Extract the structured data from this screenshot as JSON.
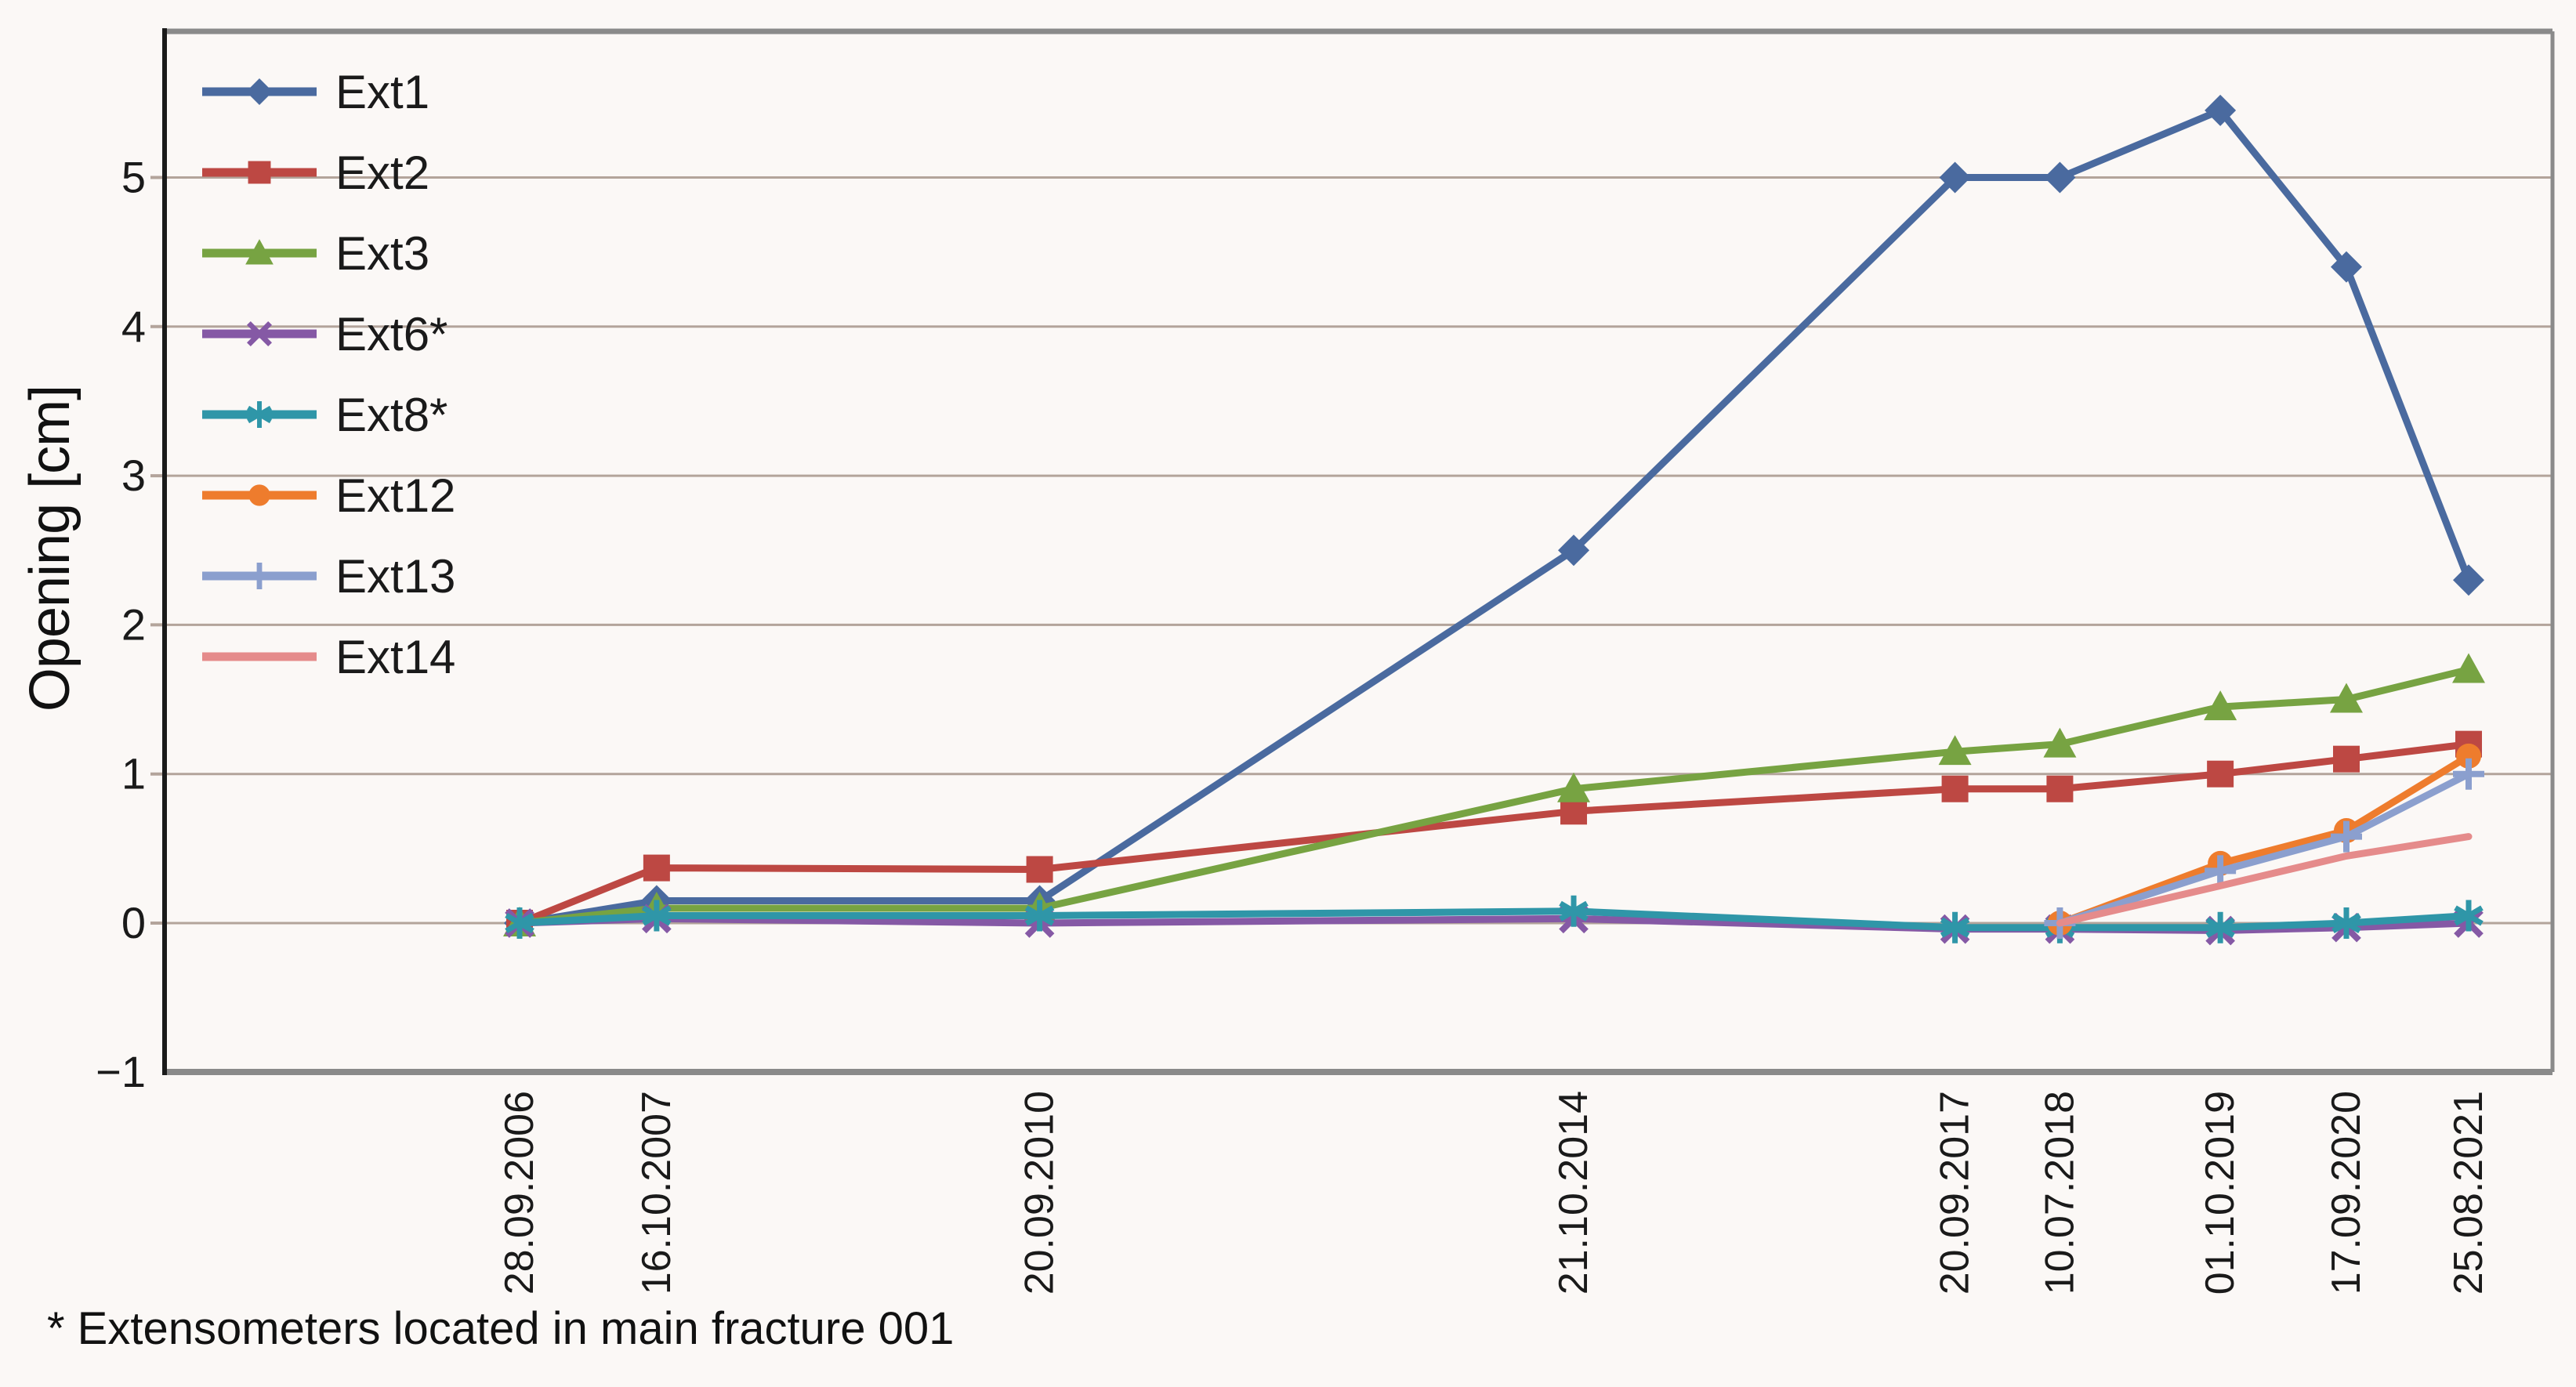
{
  "chart_data": {
    "type": "line",
    "title": "",
    "ylabel": "Opening [cm]",
    "xlabel": "",
    "grid": true,
    "legend_position": "top-left",
    "ylim": [
      -1,
      5.98
    ],
    "yticks": [
      {
        "value": 5,
        "label": "5"
      },
      {
        "value": 4,
        "label": "4"
      },
      {
        "value": 3,
        "label": "3"
      },
      {
        "value": 2,
        "label": "2"
      },
      {
        "value": 1,
        "label": "1"
      },
      {
        "value": 0,
        "label": "0"
      },
      {
        "value": -1,
        "label": "−1"
      }
    ],
    "x_dates": [
      {
        "label": "28.09.2006",
        "year": 2006.742
      },
      {
        "label": "16.10.2007",
        "year": 2007.79
      },
      {
        "label": "20.09.2010",
        "year": 2010.719
      },
      {
        "label": "21.10.2014",
        "year": 2014.803
      },
      {
        "label": "20.09.2017",
        "year": 2017.719
      },
      {
        "label": "10.07.2018",
        "year": 2018.521
      },
      {
        "label": "01.10.2019",
        "year": 2019.748
      },
      {
        "label": "17.09.2020",
        "year": 2020.712
      },
      {
        "label": "25.08.2021",
        "year": 2021.647
      }
    ],
    "series": [
      {
        "name": "Ext1",
        "color": "#4a6a9f",
        "marker": "diamond",
        "values": [
          0,
          0.15,
          0.15,
          2.5,
          5.0,
          5.0,
          5.45,
          4.4,
          2.3
        ]
      },
      {
        "name": "Ext2",
        "color": "#bd4843",
        "marker": "square",
        "values": [
          0,
          0.37,
          0.36,
          0.75,
          0.9,
          0.9,
          1.0,
          1.1,
          1.2
        ]
      },
      {
        "name": "Ext3",
        "color": "#77a342",
        "marker": "triangle",
        "values": [
          0,
          0.1,
          0.1,
          0.9,
          1.15,
          1.2,
          1.45,
          1.5,
          1.7
        ]
      },
      {
        "name": "Ext6*",
        "color": "#8559a5",
        "marker": "x",
        "values": [
          0,
          0.03,
          0.0,
          0.03,
          -0.04,
          -0.04,
          -0.05,
          -0.03,
          0.0
        ]
      },
      {
        "name": "Ext8*",
        "color": "#2f96a8",
        "marker": "asterisk",
        "values": [
          0,
          0.05,
          0.05,
          0.08,
          -0.03,
          -0.03,
          -0.03,
          0.0,
          0.05
        ]
      },
      {
        "name": "Ext12",
        "color": "#ee7c2d",
        "marker": "circle",
        "values": [
          null,
          null,
          null,
          null,
          null,
          0.0,
          0.4,
          0.62,
          1.12
        ]
      },
      {
        "name": "Ext13",
        "color": "#8b9fce",
        "marker": "plus",
        "values": [
          null,
          null,
          null,
          null,
          null,
          0.0,
          0.35,
          0.58,
          1.0
        ]
      },
      {
        "name": "Ext14",
        "color": "#e58b8b",
        "marker": "none",
        "values": [
          null,
          null,
          null,
          null,
          null,
          0.0,
          0.25,
          0.45,
          0.58
        ]
      }
    ],
    "footnote": "* Extensometers located in main fracture 001",
    "colors": {
      "background": "#fbf8f6",
      "gridline": "#b3a49b",
      "plot_border": "#8a8a8a",
      "y_axis_line": "#1a1a1a",
      "text": "#1a1a1a"
    }
  }
}
